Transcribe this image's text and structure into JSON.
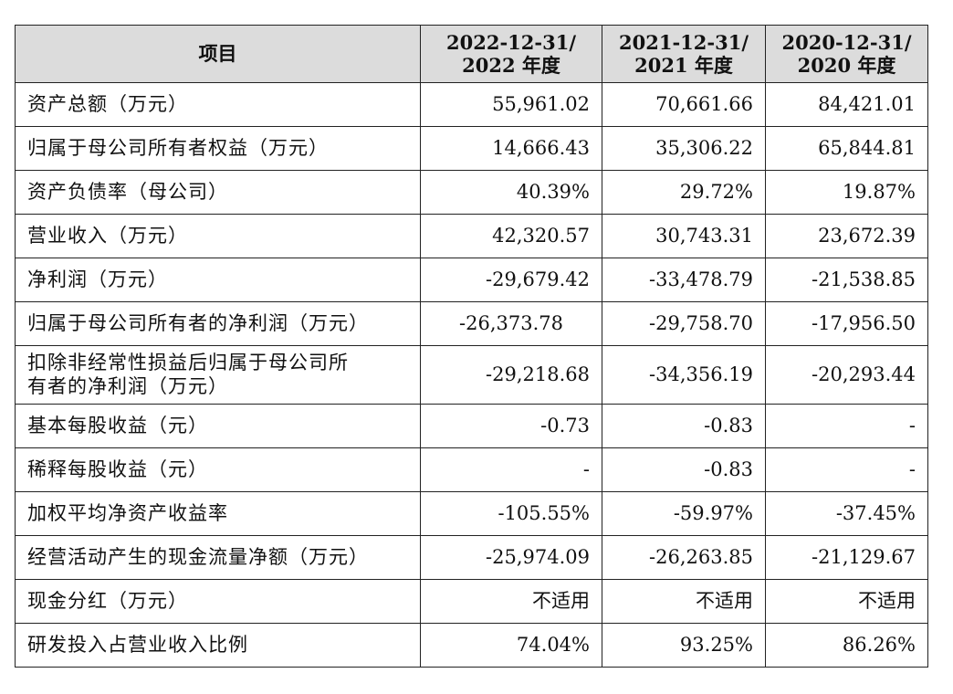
{
  "table": {
    "header": {
      "item": "项目",
      "col1": [
        "2022-12-31/",
        "2022 年度"
      ],
      "col2": [
        "2021-12-31/",
        "2021 年度"
      ],
      "col3": [
        "2020-12-31/",
        "2020 年度"
      ]
    },
    "rows": [
      {
        "label": "资产总额（万元）",
        "v1": "55,961.02",
        "v2": "70,661.66",
        "v3": "84,421.01"
      },
      {
        "label": "归属于母公司所有者权益（万元）",
        "v1": "14,666.43",
        "v2": "35,306.22",
        "v3": "65,844.81"
      },
      {
        "label": "资产负债率（母公司）",
        "v1": "40.39%",
        "v2": "29.72%",
        "v3": "19.87%"
      },
      {
        "label": "营业收入（万元）",
        "v1": "42,320.57",
        "v2": "30,743.31",
        "v3": "23,672.39"
      },
      {
        "label": "净利润（万元）",
        "v1": "-29,679.42",
        "v2": "-33,478.79",
        "v3": "-21,538.85"
      },
      {
        "label": "归属于母公司所有者的净利润（万元）",
        "v1": "-26,373.78",
        "v2": "-29,758.70",
        "v3": "-17,956.50"
      },
      {
        "label_lines": [
          "扣除非经常性损益后归属于母公司所",
          "有者的净利润（万元）"
        ],
        "v1": "-29,218.68",
        "v2": "-34,356.19",
        "v3": "-20,293.44"
      },
      {
        "label": "基本每股收益（元）",
        "v1": "-0.73",
        "v2": "-0.83",
        "v3": "-"
      },
      {
        "label": "稀释每股收益（元）",
        "v1": "-",
        "v2": "-0.83",
        "v3": "-"
      },
      {
        "label": "加权平均净资产收益率",
        "v1": "-105.55%",
        "v2": "-59.97%",
        "v3": "-37.45%"
      },
      {
        "label": "经营活动产生的现金流量净额（万元）",
        "v1": "-25,974.09",
        "v2": "-26,263.85",
        "v3": "-21,129.67"
      },
      {
        "label": "现金分红（万元）",
        "v1": "不适用",
        "v2": "不适用",
        "v3": "不适用"
      },
      {
        "label": "研发投入占营业收入比例",
        "v1": "74.04%",
        "v2": "93.25%",
        "v3": "86.26%"
      }
    ]
  }
}
